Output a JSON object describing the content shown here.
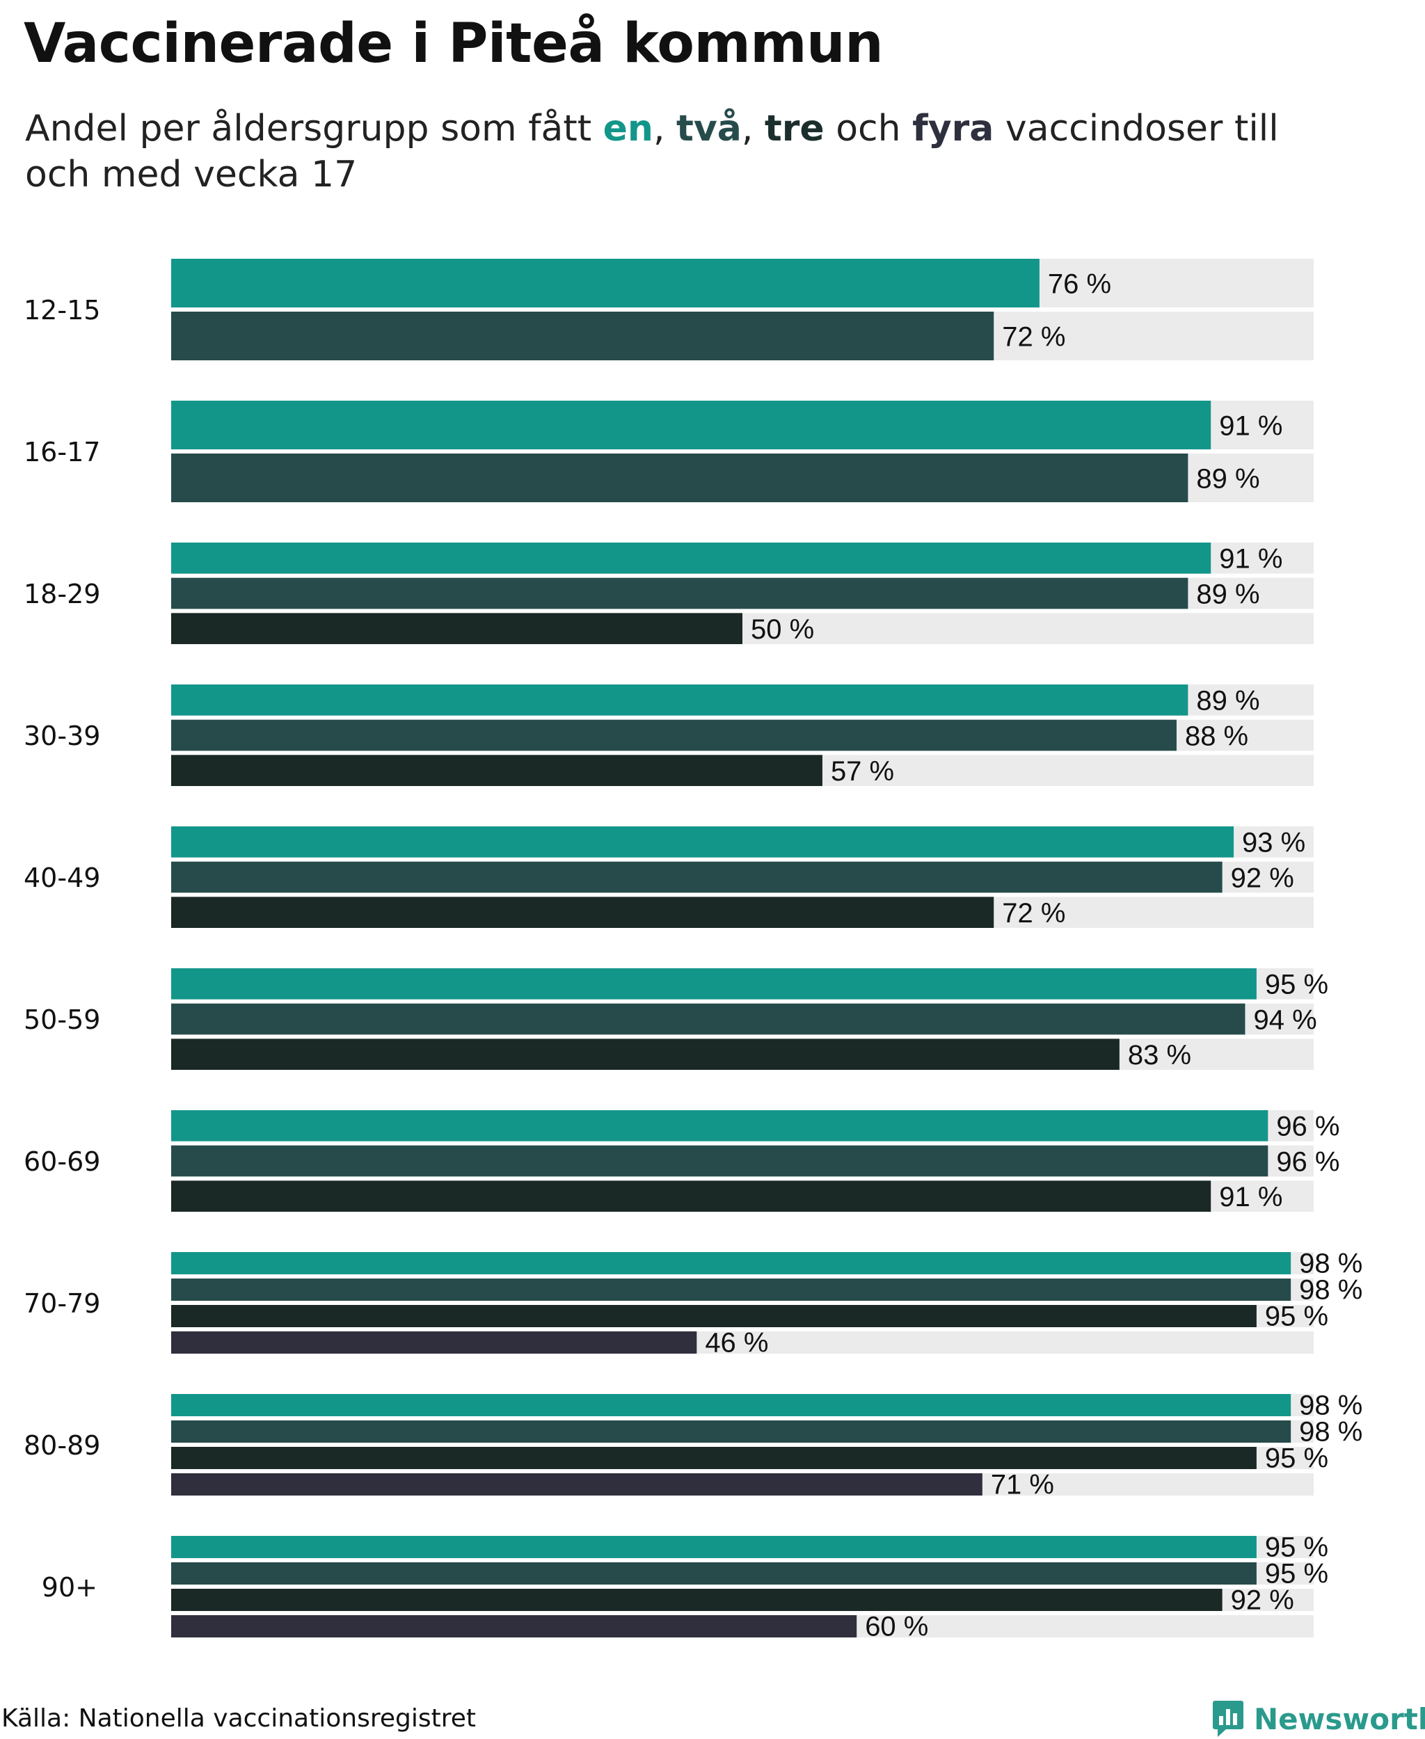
{
  "title": "Vaccinerade i Piteå kommun",
  "subtitle": {
    "prefix": "Andel per åldersgrupp som fått ",
    "kw1": "en",
    "sep1": ", ",
    "kw2": "två",
    "sep2": ", ",
    "kw3": "tre",
    "mid": " och ",
    "kw4": "fyra",
    "suffix": " vaccindoser till och med vecka 17"
  },
  "colors": {
    "dose1": "#13968a",
    "dose2": "#264b4a",
    "dose3": "#1a2826",
    "dose4": "#2f2f3d",
    "track": "#ebebeb"
  },
  "chart_data": {
    "type": "bar",
    "orientation": "horizontal",
    "title": "Vaccinerade i Piteå kommun",
    "xlim": [
      0,
      100
    ],
    "value_suffix": " %",
    "series_names": [
      "en",
      "två",
      "tre",
      "fyra"
    ],
    "groups": [
      {
        "label": "12-15",
        "values": [
          76,
          72
        ]
      },
      {
        "label": "16-17",
        "values": [
          91,
          89
        ]
      },
      {
        "label": "18-29",
        "values": [
          91,
          89,
          50
        ]
      },
      {
        "label": "30-39",
        "values": [
          89,
          88,
          57
        ]
      },
      {
        "label": "40-49",
        "values": [
          93,
          92,
          72
        ]
      },
      {
        "label": "50-59",
        "values": [
          95,
          94,
          83
        ]
      },
      {
        "label": "60-69",
        "values": [
          96,
          96,
          91
        ]
      },
      {
        "label": "70-79",
        "values": [
          98,
          98,
          95,
          46
        ]
      },
      {
        "label": "80-89",
        "values": [
          98,
          98,
          95,
          71
        ]
      },
      {
        "label": "90+",
        "values": [
          95,
          95,
          92,
          60
        ]
      }
    ]
  },
  "footer": {
    "source": "Källa: Nationella vaccinationsregistret",
    "brand": "Newsworthy"
  }
}
